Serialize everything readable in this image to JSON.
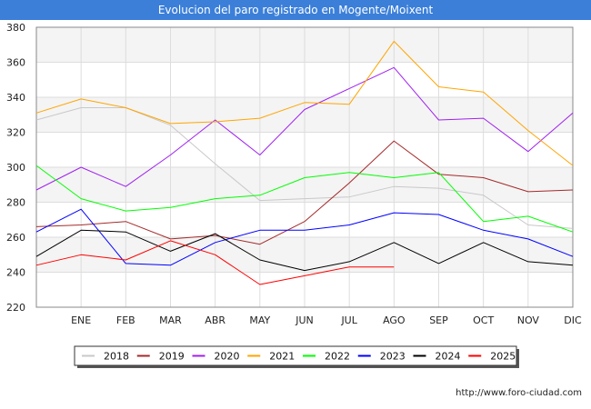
{
  "header": {
    "title": "Evolucion del paro registrado en Mogente/Moixent"
  },
  "footer": {
    "url": "http://www.foro-ciudad.com"
  },
  "chart_data": {
    "type": "line",
    "title": "Evolucion del paro registrado en Mogente/Moixent",
    "xlabel": "",
    "ylabel": "",
    "categories": [
      "",
      "ENE",
      "FEB",
      "MAR",
      "ABR",
      "MAY",
      "JUN",
      "JUL",
      "AGO",
      "SEP",
      "OCT",
      "NOV",
      "DIC"
    ],
    "y_ticks": [
      220,
      240,
      260,
      280,
      300,
      320,
      340,
      360,
      380
    ],
    "ylim": [
      220,
      380
    ],
    "grid": true,
    "legend_position": "bottom",
    "series": [
      {
        "name": "2018",
        "color": "#c8c8c8",
        "values": [
          327,
          334,
          334,
          324,
          302,
          281,
          282,
          283,
          289,
          288,
          284,
          267,
          265
        ]
      },
      {
        "name": "2019",
        "color": "#a52a2a",
        "values": [
          266,
          267,
          269,
          259,
          261,
          256,
          269,
          291,
          315,
          296,
          294,
          286,
          287
        ]
      },
      {
        "name": "2020",
        "color": "#a020f0",
        "values": [
          287,
          300,
          289,
          307,
          327,
          307,
          333,
          345,
          357,
          327,
          328,
          309,
          331
        ]
      },
      {
        "name": "2021",
        "color": "#ffa500",
        "values": [
          331,
          339,
          334,
          325,
          326,
          328,
          337,
          336,
          372,
          346,
          343,
          321,
          301
        ]
      },
      {
        "name": "2022",
        "color": "#00ff00",
        "values": [
          301,
          282,
          275,
          277,
          282,
          284,
          294,
          297,
          294,
          297,
          269,
          272,
          263
        ]
      },
      {
        "name": "2023",
        "color": "#0000ff",
        "values": [
          263,
          276,
          245,
          244,
          257,
          264,
          264,
          267,
          274,
          273,
          264,
          259,
          249
        ]
      },
      {
        "name": "2024",
        "color": "#000000",
        "values": [
          249,
          264,
          263,
          252,
          262,
          247,
          241,
          246,
          257,
          245,
          257,
          246,
          244
        ]
      },
      {
        "name": "2025",
        "color": "#ff0000",
        "values": [
          244,
          250,
          247,
          258,
          250,
          233,
          238,
          243,
          243,
          null,
          null,
          null,
          null
        ]
      }
    ]
  }
}
